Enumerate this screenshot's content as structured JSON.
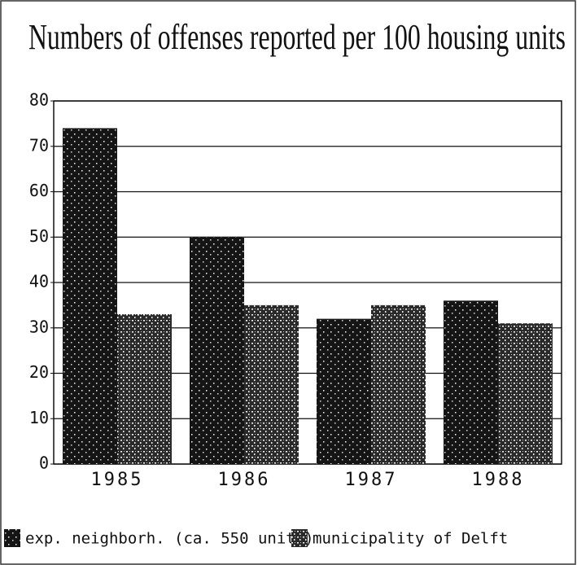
{
  "chart_data": {
    "type": "bar",
    "title": "Numbers of offenses reported per 100 housing units",
    "categories": [
      "1985",
      "1986",
      "1987",
      "1988"
    ],
    "series": [
      {
        "name": "exp. neighborh. (ca. 550 units)",
        "color": "#151515",
        "values": [
          74,
          50,
          32,
          36
        ]
      },
      {
        "name": "municipality of Delft",
        "color": "#2a2a2a",
        "values": [
          33,
          35,
          35,
          31
        ]
      }
    ],
    "ylim": [
      0,
      80
    ],
    "yticks": [
      0,
      10,
      20,
      30,
      40,
      50,
      60,
      70,
      80
    ],
    "grid": true
  }
}
